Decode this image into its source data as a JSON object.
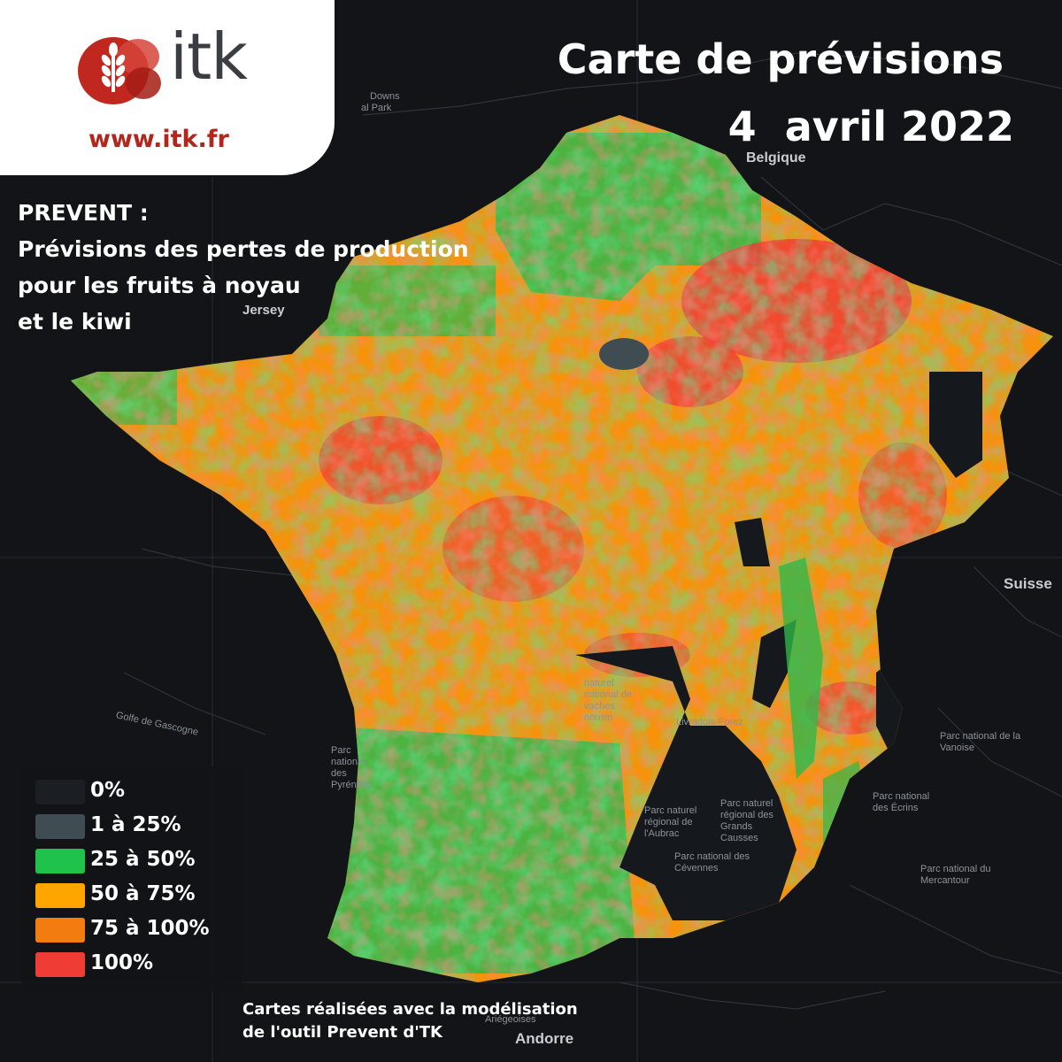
{
  "header": {
    "logo": {
      "wordmark": "itk",
      "url": "www.itk.fr",
      "brand_color": "#b3261e"
    },
    "title_line1": "Carte de prévisions",
    "title_line2": "4  avril 2022"
  },
  "subtitle": {
    "line1": "PREVENT :",
    "line2": "Prévisions des pertes de production",
    "line3": "pour les fruits à noyau",
    "line4": "et le kiwi"
  },
  "legend": {
    "items": [
      {
        "label": "0%",
        "color": "#1b1e22"
      },
      {
        "label": "1 à 25%",
        "color": "#3f4d52"
      },
      {
        "label": "25 à 50%",
        "color": "#1fc24a"
      },
      {
        "label": "50 à 75%",
        "color": "#ffa500"
      },
      {
        "label": "75 à 100%",
        "color": "#f27c10"
      },
      {
        "label": "100%",
        "color": "#ef3d36"
      }
    ]
  },
  "map": {
    "labels": {
      "belgique": "Belgique",
      "suisse": "Suisse",
      "jersey": "Jersey",
      "andorre": "Andorre",
      "golfe": "Golfe de Gascogne",
      "downs": "Downs",
      "park": "al Park",
      "vanoise": "Parc national de la Vanoise",
      "ecrins": "Parc national des Écrins",
      "mercantour": "Parc national du Mercantour",
      "cevennes": "Parc national des Cévennes",
      "livradois": "Livradois-Forez",
      "millevaches": "naturel national de vaches nousin",
      "aubrac": "Parc naturel régional de l'Aubrac",
      "grands_causses": "Parc naturel régional des Grands Causses",
      "pyrenees": "Parc national des Pyrénées",
      "ariegeoises": "Ariégeoises"
    }
  },
  "credit": {
    "line1": "Cartes réalisées avec la modélisation",
    "line2": "de l'outil Prevent d'TK"
  }
}
